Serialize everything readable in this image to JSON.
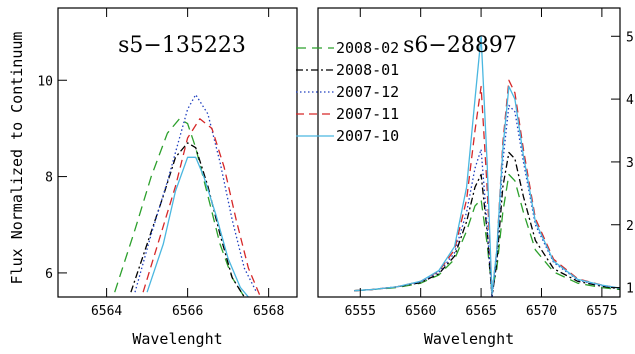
{
  "chart_data": [
    {
      "type": "line",
      "title": "s5−135223",
      "xlabel": "Wavelenght",
      "ylabel": "Flux Normalized to Continuum",
      "xlim": [
        6562.8,
        6568.7
      ],
      "ylim": [
        5.5,
        11.5
      ],
      "xticks": [
        6564,
        6566,
        6568
      ],
      "xticklabels": [
        "6564",
        "6566",
        "6568"
      ],
      "yticks": [
        6,
        8,
        10
      ],
      "yticklabels": [
        "6",
        "8",
        "10"
      ],
      "axis_side": "left",
      "grid": false,
      "series": [
        {
          "name": "2008-02",
          "color": "#2ca02c",
          "dash": "10,6",
          "x": [
            6564.2,
            6564.7,
            6565.1,
            6565.5,
            6565.8,
            6566.0,
            6566.2,
            6566.5,
            6566.8,
            6567.1,
            6567.4
          ],
          "y": [
            5.6,
            6.9,
            8.0,
            8.9,
            9.2,
            9.1,
            8.6,
            7.6,
            6.6,
            5.9,
            5.5
          ]
        },
        {
          "name": "2008-01",
          "color": "#000000",
          "dash": "7,3,2,3",
          "x": [
            6564.6,
            6565.0,
            6565.4,
            6565.7,
            6566.0,
            6566.2,
            6566.5,
            6566.8,
            6567.1,
            6567.4
          ],
          "y": [
            5.6,
            6.6,
            7.6,
            8.4,
            8.7,
            8.6,
            7.8,
            6.8,
            5.9,
            5.5
          ]
        },
        {
          "name": "2007-12",
          "color": "#1f3fbf",
          "dash": "1.5,2.5",
          "x": [
            6564.7,
            6565.1,
            6565.5,
            6565.8,
            6566.0,
            6566.2,
            6566.5,
            6566.8,
            6567.1,
            6567.4,
            6567.7
          ],
          "y": [
            5.6,
            6.8,
            7.9,
            8.8,
            9.4,
            9.7,
            9.3,
            8.3,
            7.1,
            6.1,
            5.6
          ]
        },
        {
          "name": "2007-11",
          "color": "#d62728",
          "dash": "8,5",
          "x": [
            6564.9,
            6565.3,
            6565.7,
            6566.0,
            6566.3,
            6566.6,
            6566.9,
            6567.2,
            6567.5,
            6567.8
          ],
          "y": [
            5.6,
            6.7,
            7.8,
            8.8,
            9.2,
            9.0,
            8.2,
            7.1,
            6.1,
            5.5
          ]
        },
        {
          "name": "2007-10",
          "color": "#4ab7e0",
          "dash": "",
          "x": [
            6565.0,
            6565.4,
            6565.7,
            6566.0,
            6566.2,
            6566.4,
            6566.7,
            6567.0,
            6567.3,
            6567.5
          ],
          "y": [
            5.6,
            6.6,
            7.7,
            8.4,
            8.4,
            8.0,
            7.2,
            6.3,
            5.7,
            5.5
          ]
        }
      ]
    },
    {
      "type": "line",
      "title": "s6−28897",
      "xlabel": "Wavelenght",
      "ylabel": "",
      "xlim": [
        6551.5,
        6576.5
      ],
      "ylim": [
        0.85,
        5.45
      ],
      "xticks": [
        6555,
        6560,
        6565,
        6570,
        6575
      ],
      "xticklabels": [
        "6555",
        "6560",
        "6565",
        "6570",
        "6575"
      ],
      "yticks": [
        1,
        2,
        3,
        4,
        5
      ],
      "yticklabels": [
        "1",
        "2",
        "3",
        "4",
        "5"
      ],
      "axis_side": "right",
      "grid": false,
      "series": [
        {
          "name": "2008-02",
          "color": "#2ca02c",
          "dash": "10,6",
          "x": [
            6554.5,
            6556,
            6558,
            6560,
            6561.5,
            6562.8,
            6563.8,
            6564.5,
            6565.0,
            6565.5,
            6565.9,
            6566.3,
            6566.8,
            6567.3,
            6567.8,
            6568.5,
            6569.5,
            6571,
            6573,
            6575,
            6576.5
          ],
          "y": [
            0.95,
            0.97,
            1.0,
            1.07,
            1.2,
            1.45,
            1.9,
            2.3,
            2.4,
            1.7,
            0.95,
            1.3,
            2.2,
            2.8,
            2.7,
            2.2,
            1.6,
            1.25,
            1.07,
            1.0,
            0.97
          ]
        },
        {
          "name": "2008-01",
          "color": "#000000",
          "dash": "7,3,2,3",
          "x": [
            6554.5,
            6556,
            6558,
            6560,
            6561.5,
            6562.8,
            6563.8,
            6564.5,
            6565.0,
            6565.5,
            6565.9,
            6566.3,
            6566.8,
            6567.3,
            6567.8,
            6568.5,
            6569.5,
            6571,
            6573,
            6575,
            6576.5
          ],
          "y": [
            0.95,
            0.97,
            1.01,
            1.08,
            1.22,
            1.5,
            2.05,
            2.6,
            2.8,
            1.9,
            0.85,
            1.4,
            2.6,
            3.15,
            3.05,
            2.45,
            1.75,
            1.3,
            1.1,
            1.02,
            0.98
          ]
        },
        {
          "name": "2007-12",
          "color": "#1f3fbf",
          "dash": "1.5,2.5",
          "x": [
            6554.5,
            6556,
            6558,
            6560,
            6561.5,
            6562.8,
            6563.8,
            6564.5,
            6565.0,
            6565.5,
            6565.9,
            6566.3,
            6566.8,
            6567.3,
            6567.8,
            6568.5,
            6569.5,
            6571,
            6573,
            6575,
            6576.5
          ],
          "y": [
            0.95,
            0.97,
            1.01,
            1.09,
            1.24,
            1.55,
            2.2,
            2.9,
            3.2,
            2.0,
            0.85,
            1.5,
            3.0,
            3.9,
            3.8,
            3.0,
            2.0,
            1.4,
            1.12,
            1.03,
            0.99
          ]
        },
        {
          "name": "2007-11",
          "color": "#d62728",
          "dash": "8,5",
          "x": [
            6554.5,
            6556,
            6558,
            6560,
            6561.5,
            6562.8,
            6563.8,
            6564.5,
            6565.0,
            6565.5,
            6565.9,
            6566.3,
            6566.8,
            6567.3,
            6567.8,
            6568.5,
            6569.5,
            6571,
            6573,
            6575,
            6576.5
          ],
          "y": [
            0.95,
            0.97,
            1.01,
            1.1,
            1.26,
            1.6,
            2.4,
            3.5,
            4.2,
            2.6,
            0.9,
            1.6,
            3.3,
            4.3,
            4.1,
            3.2,
            2.1,
            1.45,
            1.14,
            1.04,
            0.99
          ]
        },
        {
          "name": "2007-10",
          "color": "#4ab7e0",
          "dash": "",
          "x": [
            6554.5,
            6556,
            6558,
            6560,
            6561.5,
            6562.8,
            6563.8,
            6564.5,
            6565.0,
            6565.5,
            6565.9,
            6566.3,
            6566.8,
            6567.3,
            6567.8,
            6568.5,
            6569.5,
            6571,
            6573,
            6575,
            6576.5
          ],
          "y": [
            0.95,
            0.97,
            1.01,
            1.1,
            1.27,
            1.65,
            2.6,
            4.0,
            5.0,
            3.0,
            0.9,
            1.6,
            3.2,
            4.2,
            4.0,
            3.1,
            2.05,
            1.42,
            1.13,
            1.04,
            0.99
          ]
        }
      ]
    }
  ],
  "legend": {
    "placement": "top-center",
    "entries": [
      "2008-02",
      "2008-01",
      "2007-12",
      "2007-11",
      "2007-10"
    ]
  }
}
